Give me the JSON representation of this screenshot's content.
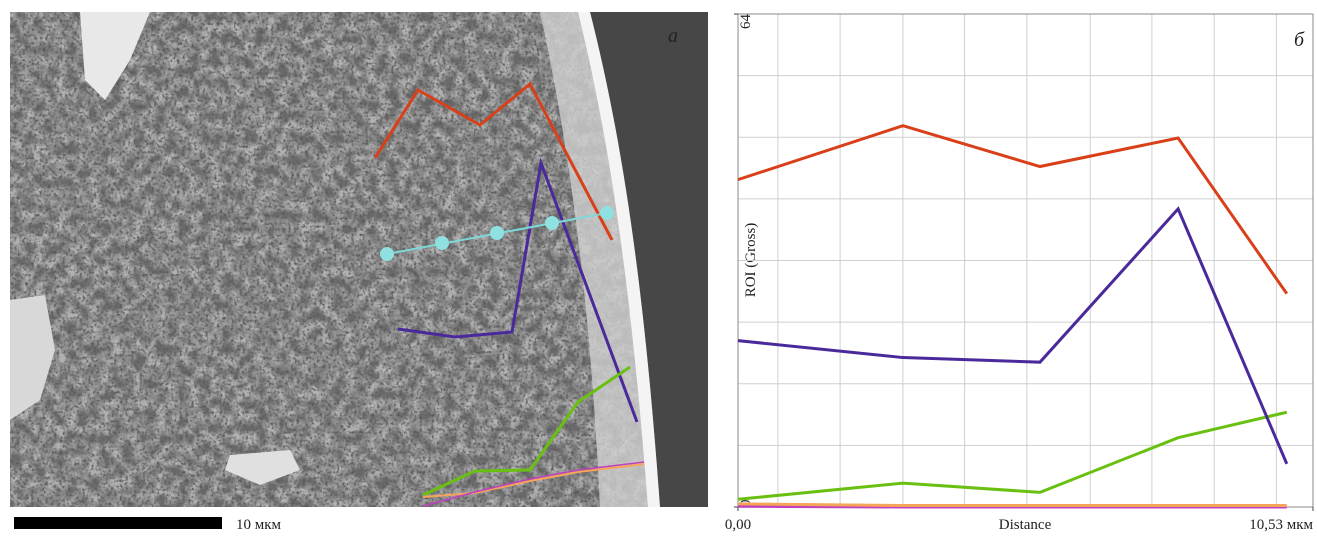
{
  "image_panel": {
    "label": "а",
    "scale_bar": "10 мкм"
  },
  "chart_data": {
    "type": "line",
    "annotation": "б",
    "ylabel": "ROI (Gross)",
    "xlabel": "Distance",
    "x": [
      0,
      3.02,
      5.53,
      8.06,
      10.05
    ],
    "series": [
      {
        "color": "#d9401a",
        "values": [
          42.5,
          49.5,
          44.2,
          47.9,
          27.7
        ]
      },
      {
        "color": "#4a2a9a",
        "values": [
          21.6,
          19.4,
          18.8,
          38.7,
          5.6
        ]
      },
      {
        "color": "#6ac010",
        "values": [
          1.0,
          3.1,
          1.9,
          9.0,
          12.3
        ]
      },
      {
        "color": "#f5a55a",
        "values": [
          0.4,
          0.2,
          0.2,
          0.2,
          0.2
        ]
      },
      {
        "color": "#c040c0",
        "values": [
          0.1,
          0,
          0,
          0,
          0
        ]
      }
    ],
    "xlim": [
      0,
      10.53
    ],
    "ylim": [
      0,
      64
    ],
    "xticks": [
      {
        "value": 0,
        "label": "0,00"
      },
      {
        "value": 10.53,
        "label": "10,53 мкм"
      }
    ],
    "yticks": [
      0,
      64
    ],
    "grid": true,
    "xgrid": [
      0.73,
      1.87,
      3.02,
      4.15,
      5.29,
      6.45,
      7.58,
      8.72,
      9.86
    ],
    "ygrid": [
      8,
      16,
      24,
      32,
      40,
      48,
      56
    ]
  }
}
